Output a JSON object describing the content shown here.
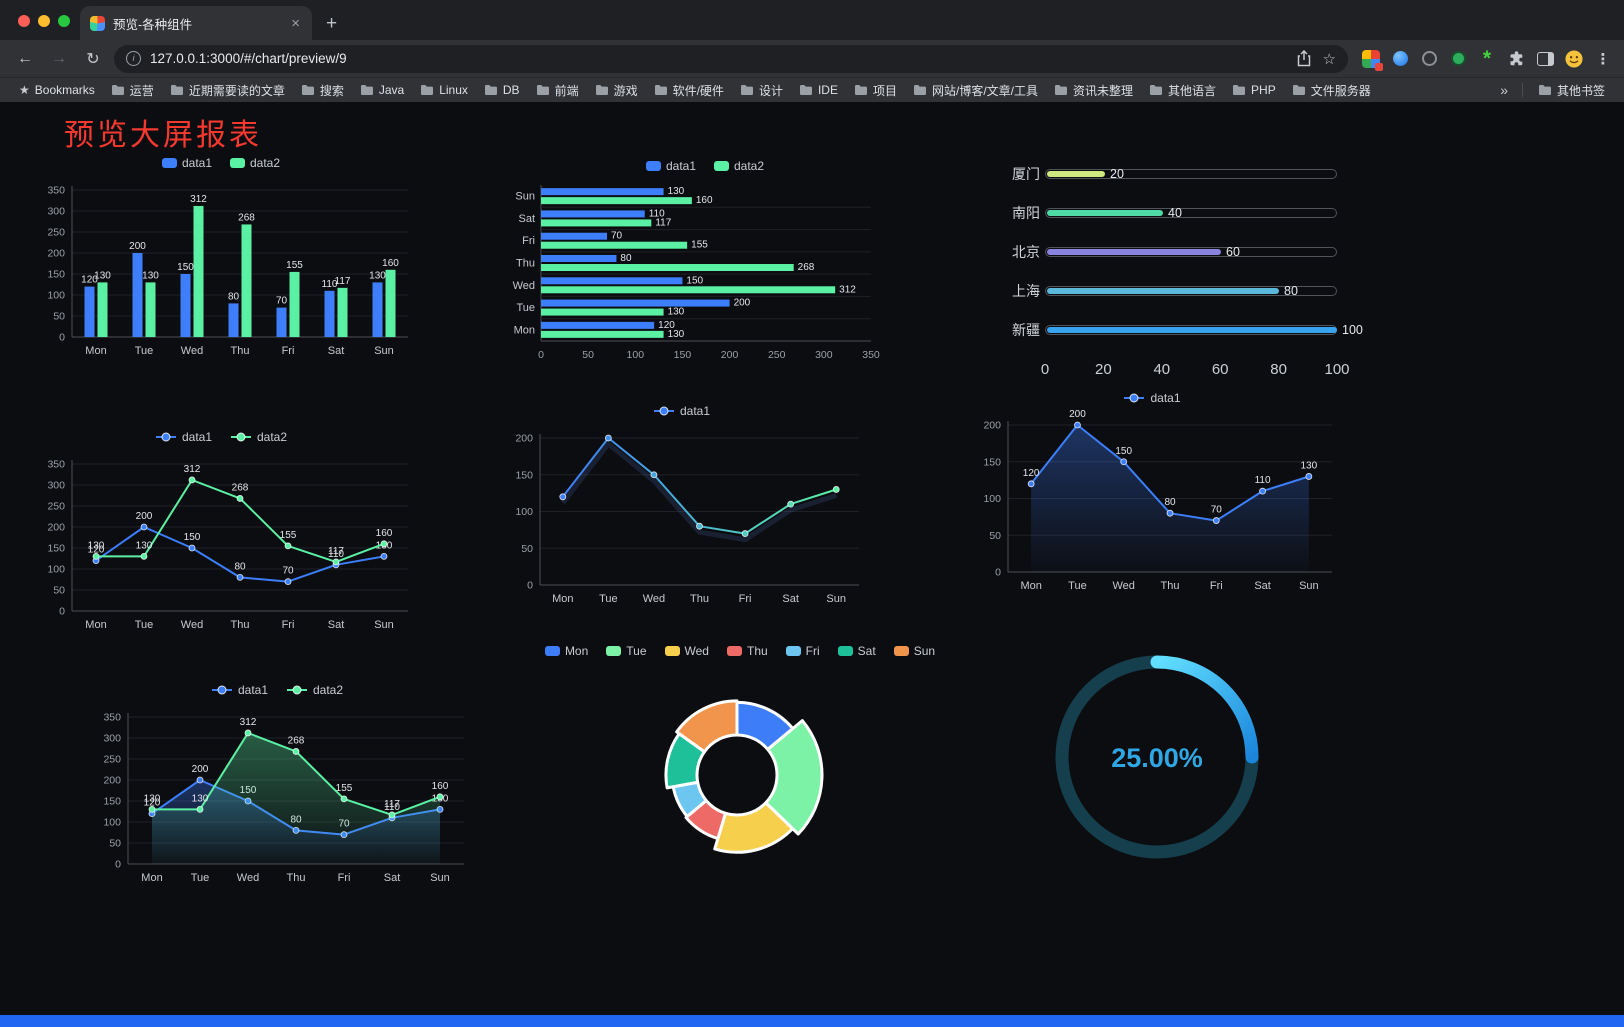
{
  "browser": {
    "tab_title": "预览-各种组件",
    "close_glyph": "×",
    "new_tab_glyph": "+",
    "url": "127.0.0.1:3000/#/chart/preview/9"
  },
  "toolbar": {
    "back_glyph": "←",
    "forward_glyph": "→",
    "reload_glyph": "↻",
    "info_glyph": "i",
    "star_glyph": "☆",
    "menu_glyph": "⋮"
  },
  "bookmarks_bar": {
    "first": "Bookmarks",
    "folders": [
      "运营",
      "近期需要读的文章",
      "搜索",
      "Java",
      "Linux",
      "DB",
      "前端",
      "游戏",
      "软件/硬件",
      "设计",
      "IDE",
      "项目",
      "网站/博客/文章/工具",
      "资讯未整理",
      "其他语言",
      "PHP",
      "文件服务器"
    ],
    "overflow_glyph": "»",
    "other": "其他书签"
  },
  "page": {
    "title": "预览大屏报表",
    "title_color": "#f5392f",
    "footer_color": "#2066f2"
  },
  "chart_data": [
    {
      "id": "grouped-bar",
      "type": "bar",
      "categories": [
        "Mon",
        "Tue",
        "Wed",
        "Thu",
        "Fri",
        "Sat",
        "Sun"
      ],
      "series": [
        {
          "name": "data1",
          "color": "#3D7EFB",
          "values": [
            120,
            200,
            150,
            80,
            70,
            110,
            130
          ]
        },
        {
          "name": "data2",
          "color": "#5BF1A5",
          "values": [
            130,
            130,
            312,
            268,
            155,
            117,
            160
          ]
        }
      ],
      "ylim": [
        0,
        350
      ],
      "yticks": [
        0,
        50,
        100,
        150,
        200,
        250,
        300,
        350
      ],
      "legend_position": "top"
    },
    {
      "id": "horizontal-bar",
      "type": "bar",
      "orientation": "horizontal",
      "categories": [
        "Mon",
        "Tue",
        "Wed",
        "Thu",
        "Fri",
        "Sat",
        "Sun"
      ],
      "series": [
        {
          "name": "data1",
          "color": "#3D7EFB",
          "values": [
            120,
            200,
            150,
            80,
            70,
            110,
            130
          ]
        },
        {
          "name": "data2",
          "color": "#5BF1A5",
          "values": [
            130,
            130,
            312,
            268,
            155,
            117,
            160
          ]
        }
      ],
      "xlim": [
        0,
        350
      ],
      "xticks": [
        0,
        50,
        100,
        150,
        200,
        250,
        300,
        350
      ],
      "legend_position": "top"
    },
    {
      "id": "capsule-progress",
      "type": "bar",
      "orientation": "horizontal",
      "categories": [
        "厦门",
        "南阳",
        "北京",
        "上海",
        "新疆"
      ],
      "values": [
        20,
        40,
        60,
        80,
        100
      ],
      "colors": [
        "#CDE97F",
        "#4FD9A7",
        "#8A83DF",
        "#5CB8DA",
        "#38A3EE"
      ],
      "xlim": [
        0,
        100
      ],
      "xticks": [
        0,
        20,
        40,
        60,
        80,
        100
      ]
    },
    {
      "id": "multi-line",
      "type": "line",
      "categories": [
        "Mon",
        "Tue",
        "Wed",
        "Thu",
        "Fri",
        "Sat",
        "Sun"
      ],
      "series": [
        {
          "name": "data1",
          "color": "#3D7EFB",
          "values": [
            120,
            200,
            150,
            80,
            70,
            110,
            130
          ]
        },
        {
          "name": "data2",
          "color": "#5BF1A5",
          "values": [
            130,
            130,
            312,
            268,
            155,
            117,
            160
          ]
        }
      ],
      "ylim": [
        0,
        350
      ],
      "yticks": [
        0,
        50,
        100,
        150,
        200,
        250,
        300,
        350
      ],
      "show_labels": true
    },
    {
      "id": "gradient-line",
      "type": "line",
      "categories": [
        "Mon",
        "Tue",
        "Wed",
        "Thu",
        "Fri",
        "Sat",
        "Sun"
      ],
      "series": [
        {
          "name": "data1",
          "gradient": [
            "#3D7EFB",
            "#5BF1A5"
          ],
          "color": "#3D7EFB",
          "values": [
            120,
            200,
            150,
            80,
            70,
            110,
            130
          ]
        }
      ],
      "ylim": [
        0,
        200
      ],
      "yticks": [
        0,
        50,
        100,
        150,
        200
      ],
      "show_labels": false
    },
    {
      "id": "area-line",
      "type": "area",
      "categories": [
        "Mon",
        "Tue",
        "Wed",
        "Thu",
        "Fri",
        "Sat",
        "Sun"
      ],
      "series": [
        {
          "name": "data1",
          "color": "#3D7EFB",
          "area": true,
          "values": [
            120,
            200,
            150,
            80,
            70,
            110,
            130
          ]
        }
      ],
      "ylim": [
        0,
        200
      ],
      "yticks": [
        0,
        50,
        100,
        150,
        200
      ],
      "show_labels": true
    },
    {
      "id": "multi-line-area",
      "type": "area",
      "categories": [
        "Mon",
        "Tue",
        "Wed",
        "Thu",
        "Fri",
        "Sat",
        "Sun"
      ],
      "series": [
        {
          "name": "data1",
          "color": "#3D7EFB",
          "area": true,
          "values": [
            120,
            200,
            150,
            80,
            70,
            110,
            130
          ]
        },
        {
          "name": "data2",
          "color": "#5BF1A5",
          "area": true,
          "values": [
            130,
            130,
            312,
            268,
            155,
            117,
            160
          ]
        }
      ],
      "ylim": [
        0,
        350
      ],
      "yticks": [
        0,
        50,
        100,
        150,
        200,
        250,
        300,
        350
      ],
      "show_labels": true
    },
    {
      "id": "rose-donut",
      "type": "pie",
      "categories": [
        "Mon",
        "Tue",
        "Wed",
        "Thu",
        "Fri",
        "Sat",
        "Sun"
      ],
      "values": [
        120,
        200,
        150,
        80,
        70,
        110,
        130
      ],
      "colors": [
        "#3D7EF8",
        "#7CF2A6",
        "#F6D04D",
        "#ED6A66",
        "#6CC6F0",
        "#1EC09A",
        "#F2954C"
      ]
    },
    {
      "id": "progress-gauge",
      "type": "gauge",
      "value": 25,
      "label": "25.00%",
      "color": "#2FA7E4",
      "track_color": "#163F4E",
      "arc_gradient": [
        "#62DFFF",
        "#1B86DC"
      ]
    }
  ]
}
